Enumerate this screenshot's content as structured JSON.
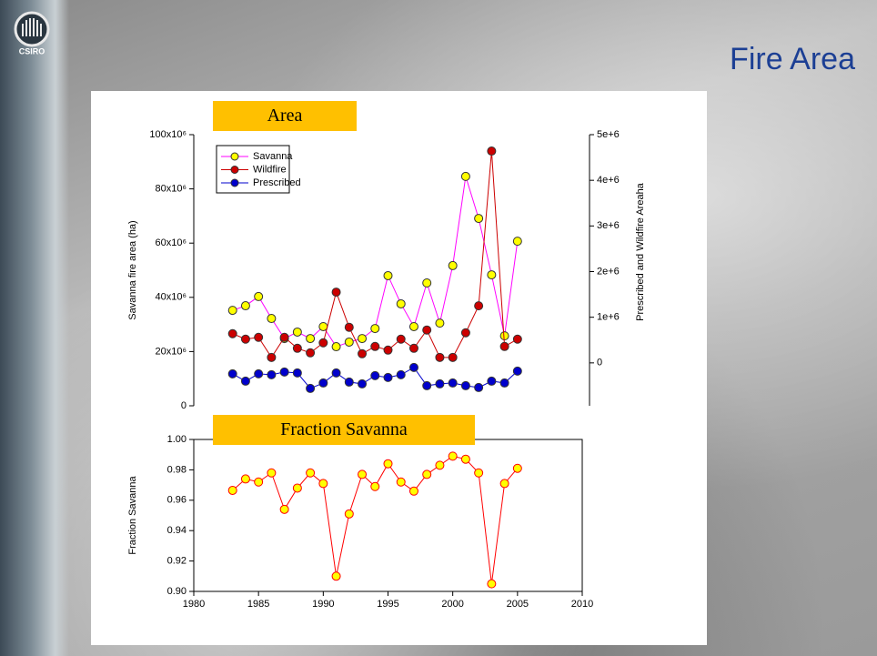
{
  "slide": {
    "title": "Fire Area",
    "logo": "CSIRO"
  },
  "chart_data": [
    {
      "type": "line",
      "title": "Area",
      "ylabel": "Savanna fire area (ha)",
      "y2label": "Prescribed and Wildfire Areaha",
      "x": [
        1983,
        1984,
        1985,
        1986,
        1987,
        1988,
        1989,
        1990,
        1991,
        1992,
        1993,
        1994,
        1995,
        1996,
        1997,
        1998,
        1999,
        2000,
        2001,
        2002,
        2003,
        2004,
        2005
      ],
      "xlim": [
        1980,
        2010
      ],
      "ylim": [
        0,
        100000000
      ],
      "yticks": [
        0,
        {
          "value": 20000000,
          "label": "20x10⁶"
        },
        {
          "value": 40000000,
          "label": "40x10⁶"
        },
        {
          "value": 60000000,
          "label": "60x10⁶"
        },
        {
          "value": 80000000,
          "label": "80x10⁶"
        },
        {
          "value": 100000000,
          "label": "100x10⁶"
        }
      ],
      "y2lim": [
        -940000,
        5000000
      ],
      "y2ticks": [
        0,
        {
          "value": 1000000,
          "label": "1e+6"
        },
        {
          "value": 2000000,
          "label": "2e+6"
        },
        {
          "value": 3000000,
          "label": "3e+6"
        },
        {
          "value": 4000000,
          "label": "4e+6"
        },
        {
          "value": 5000000,
          "label": "5e+6"
        }
      ],
      "legend": "upper left",
      "series": [
        {
          "name": "Savanna",
          "color": "#ff00ff",
          "marker_color": "#ffff00",
          "values": [
            35200000,
            36900000,
            40300000,
            32200000,
            24800000,
            27200000,
            24800000,
            29200000,
            21800000,
            23500000,
            24800000,
            28500000,
            48000000,
            37600000,
            29200000,
            45300000,
            30500000,
            51700000,
            84600000,
            69100000,
            48300000,
            25800000,
            60700000
          ]
        },
        {
          "name": "Wildfire",
          "color": "#cc0000",
          "marker_color": "#cc0000",
          "axis": "y2",
          "values": [
            640000,
            520000,
            560000,
            120000,
            560000,
            320000,
            220000,
            440000,
            1550000,
            780000,
            200000,
            360000,
            280000,
            520000,
            320000,
            720000,
            120000,
            120000,
            660000,
            1250000,
            4640000,
            360000,
            520000
          ]
        },
        {
          "name": "Prescribed",
          "color": "#0000cc",
          "marker_color": "#0000cc",
          "axis": "y2",
          "values": [
            -240000,
            -400000,
            -240000,
            -260000,
            -200000,
            -220000,
            -560000,
            -440000,
            -220000,
            -420000,
            -460000,
            -280000,
            -320000,
            -260000,
            -100000,
            -500000,
            -460000,
            -440000,
            -500000,
            -540000,
            -400000,
            -440000,
            -180000
          ]
        }
      ]
    },
    {
      "type": "line",
      "title": "Fraction Savanna",
      "ylabel": "Fraction Savanna",
      "x": [
        1983,
        1984,
        1985,
        1986,
        1987,
        1988,
        1989,
        1990,
        1991,
        1992,
        1993,
        1994,
        1995,
        1996,
        1997,
        1998,
        1999,
        2000,
        2001,
        2002,
        2003,
        2004,
        2005
      ],
      "xlim": [
        1980,
        2010
      ],
      "xticks": [
        1980,
        1985,
        1990,
        1995,
        2000,
        2005,
        2010
      ],
      "ylim": [
        0.9,
        1.0
      ],
      "yticks": [
        {
          "value": 0.9,
          "label": "0.90"
        },
        0.92,
        0.94,
        0.96,
        0.98,
        {
          "value": 1.0,
          "label": "1.00"
        }
      ],
      "series": [
        {
          "color": "#ff0000",
          "marker_color": "#ffff00",
          "values": [
            0.9665,
            0.974,
            0.972,
            0.978,
            0.954,
            0.968,
            0.978,
            0.971,
            0.91,
            0.951,
            0.977,
            0.969,
            0.984,
            0.972,
            0.966,
            0.977,
            0.983,
            0.989,
            0.987,
            0.978,
            0.905,
            0.971,
            0.981
          ]
        }
      ]
    }
  ]
}
